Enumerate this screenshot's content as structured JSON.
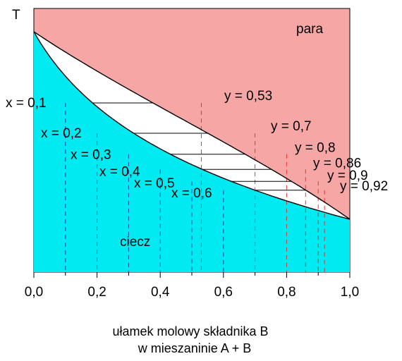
{
  "colors": {
    "vapor_region": "#f7a6a6",
    "liquid_region": "#00eaf2",
    "two_phase_region": "#ffffff",
    "x_dashed_line": "#2b3fa8",
    "y_dashed_line": "#e8322e",
    "tie_line": "#000000"
  },
  "diagram": {
    "y_axis_label": "T",
    "region_vapor_label": "para",
    "region_liquid_label": "ciecz",
    "x_tick_labels": [
      "0,0",
      "0,2",
      "0,4",
      "0,6",
      "0,8",
      "1,0"
    ],
    "x_axis_title_line1": "ułamek  molowy  składnika  B",
    "x_axis_title_line2": "w mieszaninie A + B"
  },
  "chart_data": {
    "type": "phase-diagram",
    "xlim": [
      0,
      1
    ],
    "tie_lines": [
      {
        "x": 0.1,
        "y": 0.53,
        "x_label": "x = 0,1",
        "y_label": "y = 0,53"
      },
      {
        "x": 0.2,
        "y": 0.7,
        "x_label": "x = 0,2",
        "y_label": "y = 0,7"
      },
      {
        "x": 0.3,
        "y": 0.8,
        "x_label": "x = 0,3",
        "y_label": "y = 0,8"
      },
      {
        "x": 0.4,
        "y": 0.86,
        "x_label": "x = 0,4",
        "y_label": "y = 0,86"
      },
      {
        "x": 0.5,
        "y": 0.9,
        "x_label": "x = 0,5",
        "y_label": "y = 0,9"
      },
      {
        "x": 0.6,
        "y": 0.92,
        "x_label": "x = 0,6",
        "y_label": "y = 0,92"
      }
    ]
  }
}
